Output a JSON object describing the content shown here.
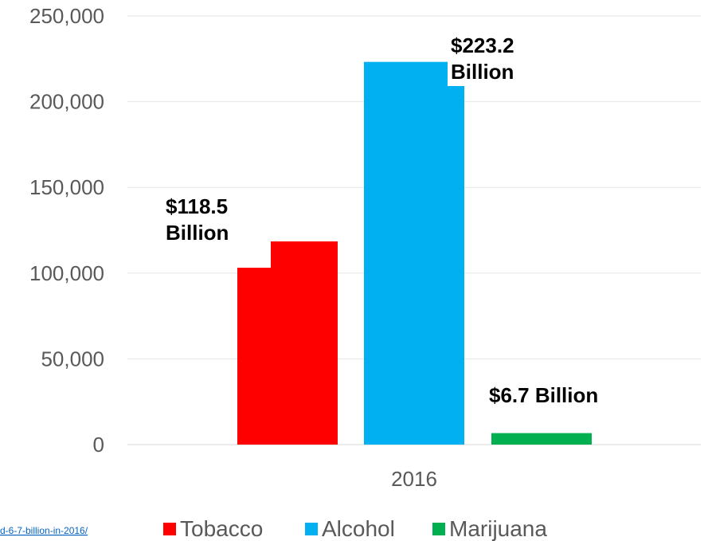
{
  "source_link": "d-6-7-billion-in-2016/",
  "chart_data": {
    "type": "bar",
    "categories": [
      "2016"
    ],
    "series": [
      {
        "name": "Tobacco",
        "values": [
          118500
        ],
        "color": "#ff0000",
        "label": [
          "$118.5",
          "Billion"
        ]
      },
      {
        "name": "Alcohol",
        "values": [
          223200
        ],
        "color": "#00b0f0",
        "label": [
          "$223.2",
          "Billion"
        ]
      },
      {
        "name": "Marijuana",
        "values": [
          6700
        ],
        "color": "#00b050",
        "label": [
          "$6.7 Billion"
        ]
      }
    ],
    "yticks": [
      "0",
      "50,000",
      "100,000",
      "150,000",
      "200,000",
      "250,000"
    ],
    "ylim": [
      0,
      250000
    ],
    "grid": true,
    "legend": "bottom"
  }
}
